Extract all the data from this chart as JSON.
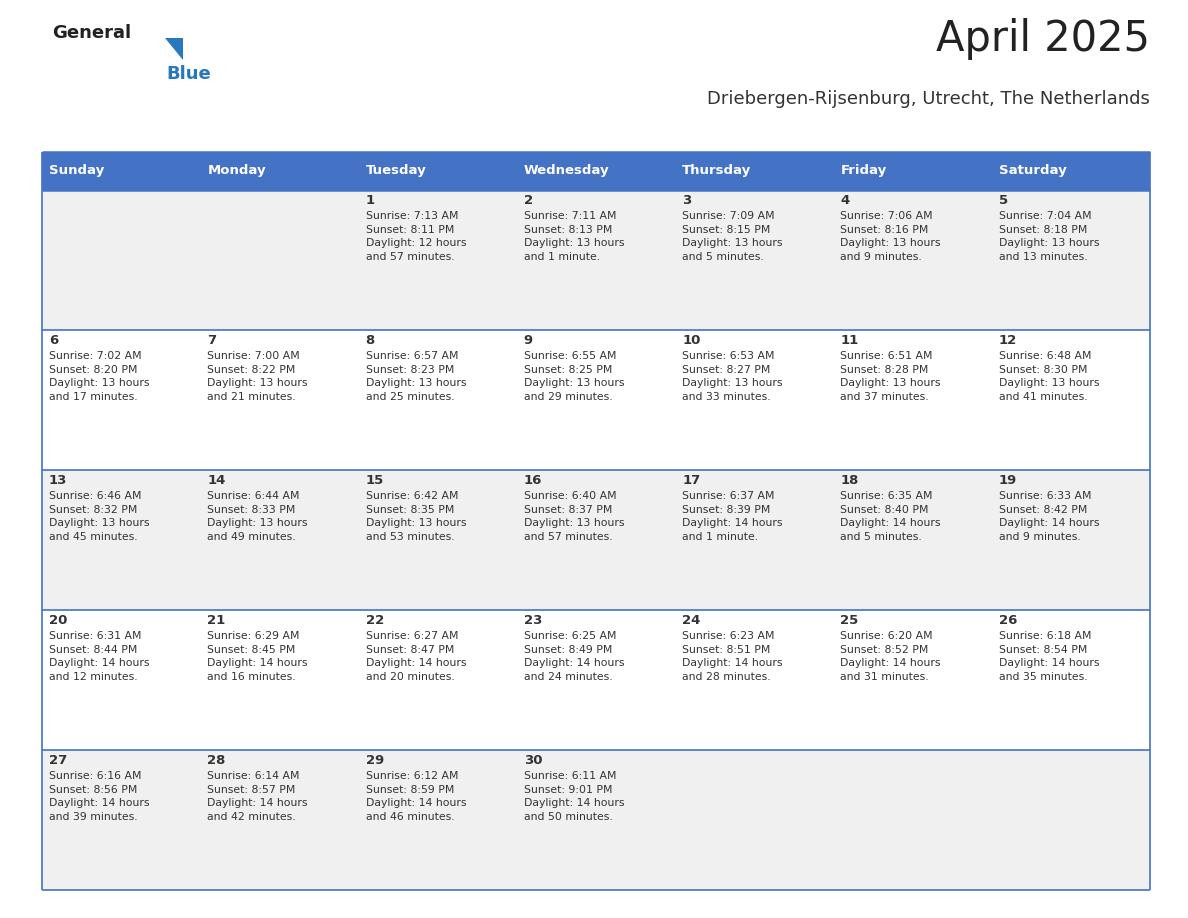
{
  "title": "April 2025",
  "subtitle": "Driebergen-Rijsenburg, Utrecht, The Netherlands",
  "header_bg_color": "#4472C4",
  "header_text_color": "#FFFFFF",
  "row_bg_odd": "#F0F0F0",
  "row_bg_even": "#FFFFFF",
  "cell_text_color": "#333333",
  "days_of_week": [
    "Sunday",
    "Monday",
    "Tuesday",
    "Wednesday",
    "Thursday",
    "Friday",
    "Saturday"
  ],
  "title_color": "#222222",
  "subtitle_color": "#333333",
  "logo_general_color": "#222222",
  "logo_blue_color": "#2878BE",
  "divider_color": "#4472C4",
  "calendar": [
    [
      {
        "day": "",
        "info": ""
      },
      {
        "day": "",
        "info": ""
      },
      {
        "day": "1",
        "info": "Sunrise: 7:13 AM\nSunset: 8:11 PM\nDaylight: 12 hours\nand 57 minutes."
      },
      {
        "day": "2",
        "info": "Sunrise: 7:11 AM\nSunset: 8:13 PM\nDaylight: 13 hours\nand 1 minute."
      },
      {
        "day": "3",
        "info": "Sunrise: 7:09 AM\nSunset: 8:15 PM\nDaylight: 13 hours\nand 5 minutes."
      },
      {
        "day": "4",
        "info": "Sunrise: 7:06 AM\nSunset: 8:16 PM\nDaylight: 13 hours\nand 9 minutes."
      },
      {
        "day": "5",
        "info": "Sunrise: 7:04 AM\nSunset: 8:18 PM\nDaylight: 13 hours\nand 13 minutes."
      }
    ],
    [
      {
        "day": "6",
        "info": "Sunrise: 7:02 AM\nSunset: 8:20 PM\nDaylight: 13 hours\nand 17 minutes."
      },
      {
        "day": "7",
        "info": "Sunrise: 7:00 AM\nSunset: 8:22 PM\nDaylight: 13 hours\nand 21 minutes."
      },
      {
        "day": "8",
        "info": "Sunrise: 6:57 AM\nSunset: 8:23 PM\nDaylight: 13 hours\nand 25 minutes."
      },
      {
        "day": "9",
        "info": "Sunrise: 6:55 AM\nSunset: 8:25 PM\nDaylight: 13 hours\nand 29 minutes."
      },
      {
        "day": "10",
        "info": "Sunrise: 6:53 AM\nSunset: 8:27 PM\nDaylight: 13 hours\nand 33 minutes."
      },
      {
        "day": "11",
        "info": "Sunrise: 6:51 AM\nSunset: 8:28 PM\nDaylight: 13 hours\nand 37 minutes."
      },
      {
        "day": "12",
        "info": "Sunrise: 6:48 AM\nSunset: 8:30 PM\nDaylight: 13 hours\nand 41 minutes."
      }
    ],
    [
      {
        "day": "13",
        "info": "Sunrise: 6:46 AM\nSunset: 8:32 PM\nDaylight: 13 hours\nand 45 minutes."
      },
      {
        "day": "14",
        "info": "Sunrise: 6:44 AM\nSunset: 8:33 PM\nDaylight: 13 hours\nand 49 minutes."
      },
      {
        "day": "15",
        "info": "Sunrise: 6:42 AM\nSunset: 8:35 PM\nDaylight: 13 hours\nand 53 minutes."
      },
      {
        "day": "16",
        "info": "Sunrise: 6:40 AM\nSunset: 8:37 PM\nDaylight: 13 hours\nand 57 minutes."
      },
      {
        "day": "17",
        "info": "Sunrise: 6:37 AM\nSunset: 8:39 PM\nDaylight: 14 hours\nand 1 minute."
      },
      {
        "day": "18",
        "info": "Sunrise: 6:35 AM\nSunset: 8:40 PM\nDaylight: 14 hours\nand 5 minutes."
      },
      {
        "day": "19",
        "info": "Sunrise: 6:33 AM\nSunset: 8:42 PM\nDaylight: 14 hours\nand 9 minutes."
      }
    ],
    [
      {
        "day": "20",
        "info": "Sunrise: 6:31 AM\nSunset: 8:44 PM\nDaylight: 14 hours\nand 12 minutes."
      },
      {
        "day": "21",
        "info": "Sunrise: 6:29 AM\nSunset: 8:45 PM\nDaylight: 14 hours\nand 16 minutes."
      },
      {
        "day": "22",
        "info": "Sunrise: 6:27 AM\nSunset: 8:47 PM\nDaylight: 14 hours\nand 20 minutes."
      },
      {
        "day": "23",
        "info": "Sunrise: 6:25 AM\nSunset: 8:49 PM\nDaylight: 14 hours\nand 24 minutes."
      },
      {
        "day": "24",
        "info": "Sunrise: 6:23 AM\nSunset: 8:51 PM\nDaylight: 14 hours\nand 28 minutes."
      },
      {
        "day": "25",
        "info": "Sunrise: 6:20 AM\nSunset: 8:52 PM\nDaylight: 14 hours\nand 31 minutes."
      },
      {
        "day": "26",
        "info": "Sunrise: 6:18 AM\nSunset: 8:54 PM\nDaylight: 14 hours\nand 35 minutes."
      }
    ],
    [
      {
        "day": "27",
        "info": "Sunrise: 6:16 AM\nSunset: 8:56 PM\nDaylight: 14 hours\nand 39 minutes."
      },
      {
        "day": "28",
        "info": "Sunrise: 6:14 AM\nSunset: 8:57 PM\nDaylight: 14 hours\nand 42 minutes."
      },
      {
        "day": "29",
        "info": "Sunrise: 6:12 AM\nSunset: 8:59 PM\nDaylight: 14 hours\nand 46 minutes."
      },
      {
        "day": "30",
        "info": "Sunrise: 6:11 AM\nSunset: 9:01 PM\nDaylight: 14 hours\nand 50 minutes."
      },
      {
        "day": "",
        "info": ""
      },
      {
        "day": "",
        "info": ""
      },
      {
        "day": "",
        "info": ""
      }
    ]
  ],
  "figwidth": 11.88,
  "figheight": 9.18,
  "dpi": 100
}
